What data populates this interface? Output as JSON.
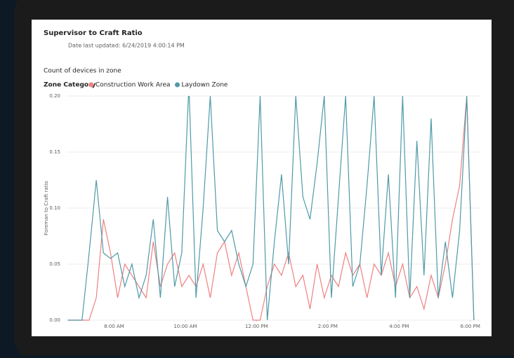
{
  "chart_data": {
    "type": "line",
    "title": "Supervisor to Craft Ratio",
    "subtitle": "Date last updated: 6/24/2019 4:00:14 PM",
    "caption": "Count of devices in zone",
    "legend_title": "Zone Category",
    "y_label": "Foreman to Craft ratio",
    "x": [
      6.7,
      6.9,
      7.1,
      7.3,
      7.5,
      7.7,
      7.9,
      8.1,
      8.3,
      8.5,
      8.7,
      8.9,
      9.1,
      9.3,
      9.5,
      9.7,
      9.9,
      10.1,
      10.3,
      10.5,
      10.7,
      10.9,
      11.1,
      11.3,
      11.5,
      11.7,
      11.9,
      12.1,
      12.3,
      12.5,
      12.7,
      12.9,
      13.1,
      13.3,
      13.5,
      13.7,
      13.9,
      14.1,
      14.3,
      14.5,
      14.7,
      14.9,
      15.1,
      15.3,
      15.5,
      15.7,
      15.9,
      16.1,
      16.3,
      16.5,
      16.7,
      16.9,
      17.1,
      17.3,
      17.5,
      17.7,
      17.9,
      18.1
    ],
    "series": [
      {
        "name": "Construction Work Area",
        "color": "#f08080",
        "values": [
          0,
          0,
          0,
          0,
          0.02,
          0.09,
          0.06,
          0.02,
          0.05,
          0.04,
          0.03,
          0.02,
          0.07,
          0.03,
          0.05,
          0.06,
          0.03,
          0.04,
          0.03,
          0.05,
          0.02,
          0.06,
          0.07,
          0.04,
          0.06,
          0.03,
          0,
          0,
          0.03,
          0.05,
          0.04,
          0.06,
          0.03,
          0.04,
          0.01,
          0.05,
          0.02,
          0.04,
          0.03,
          0.06,
          0.04,
          0.05,
          0.02,
          0.05,
          0.04,
          0.06,
          0.03,
          0.05,
          0.02,
          0.03,
          0.01,
          0.04,
          0.02,
          0.05,
          0.09,
          0.12,
          0.2,
          0
        ]
      },
      {
        "name": "Laydown Zone",
        "color": "#4f9aa8",
        "values": [
          0,
          0,
          0,
          0.06,
          0.125,
          0.06,
          0.055,
          0.06,
          0.03,
          0.05,
          0.02,
          0.04,
          0.09,
          0.02,
          0.11,
          0.03,
          0.06,
          0.21,
          0.02,
          0.1,
          0.2,
          0.08,
          0.07,
          0.08,
          0.05,
          0.03,
          0.05,
          0.2,
          0,
          0.07,
          0.13,
          0.05,
          0.2,
          0.11,
          0.09,
          0.14,
          0.2,
          0.02,
          0.11,
          0.2,
          0.03,
          0.05,
          0.12,
          0.2,
          0.04,
          0.13,
          0.02,
          0.2,
          0.02,
          0.16,
          0.04,
          0.18,
          0.02,
          0.07,
          0.02,
          0.08,
          0.2,
          0
        ]
      }
    ],
    "xlim": [
      6.67,
      18.3
    ],
    "xticks": [
      {
        "value": 8,
        "label": "8:00 AM"
      },
      {
        "value": 10,
        "label": "10:00 AM"
      },
      {
        "value": 12,
        "label": "12:00 PM"
      },
      {
        "value": 14,
        "label": "2:00 PM"
      },
      {
        "value": 16,
        "label": "4:00 PM"
      },
      {
        "value": 18,
        "label": "6:00 PM"
      }
    ],
    "ylim": [
      0,
      0.2
    ],
    "yticks": [
      {
        "value": 0,
        "label": "0.00"
      },
      0.05,
      {
        "value": 0.1,
        "label": "0.10"
      },
      0.15,
      {
        "value": 0.2,
        "label": "0.20"
      }
    ],
    "grid": true
  }
}
